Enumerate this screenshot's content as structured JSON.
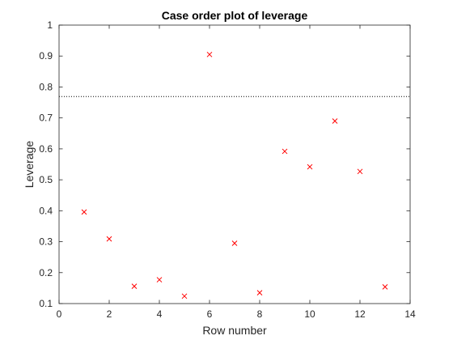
{
  "chart_data": {
    "type": "scatter",
    "title": "Case order plot of leverage",
    "xlabel": "Row number",
    "ylabel": "Leverage",
    "xlim": [
      0,
      14
    ],
    "ylim": [
      0.1,
      1
    ],
    "xticks": [
      0,
      2,
      4,
      6,
      8,
      10,
      12,
      14
    ],
    "yticks": [
      0.1,
      0.2,
      0.3,
      0.4,
      0.5,
      0.6,
      0.7,
      0.8,
      0.9,
      1
    ],
    "xtick_labels": [
      "0",
      "2",
      "4",
      "6",
      "8",
      "10",
      "12",
      "14"
    ],
    "ytick_labels": [
      "0.1",
      "0.2",
      "0.3",
      "0.4",
      "0.5",
      "0.6",
      "0.7",
      "0.8",
      "0.9",
      "1"
    ],
    "grid": false,
    "marker": "x",
    "marker_color": "#ff0000",
    "points": [
      {
        "x": 1,
        "y": 0.396
      },
      {
        "x": 2,
        "y": 0.309
      },
      {
        "x": 3,
        "y": 0.156
      },
      {
        "x": 4,
        "y": 0.177
      },
      {
        "x": 5,
        "y": 0.124
      },
      {
        "x": 6,
        "y": 0.905
      },
      {
        "x": 7,
        "y": 0.295
      },
      {
        "x": 8,
        "y": 0.135
      },
      {
        "x": 9,
        "y": 0.592
      },
      {
        "x": 10,
        "y": 0.542
      },
      {
        "x": 11,
        "y": 0.69
      },
      {
        "x": 12,
        "y": 0.527
      },
      {
        "x": 13,
        "y": 0.154
      }
    ],
    "reference_line": {
      "y": 0.769,
      "style": "dotted",
      "color": "#000000"
    }
  }
}
